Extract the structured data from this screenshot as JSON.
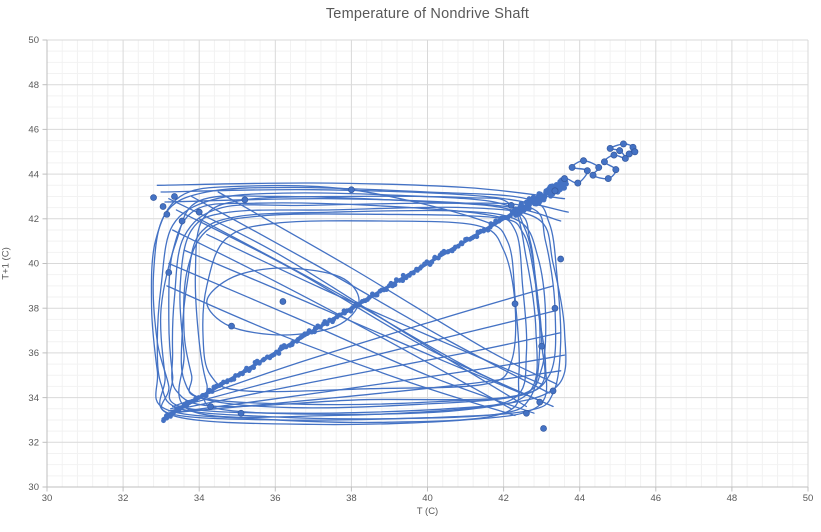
{
  "page": {
    "background": "#ffffff"
  },
  "chart_data": {
    "type": "scatter",
    "subtype": "lag-plot-smooth-lines-with-markers",
    "title": "Temperature of Nondrive Shaft",
    "xlabel": "T (C)",
    "ylabel": "T+1 (C)",
    "xlim": [
      30,
      50
    ],
    "ylim": [
      30,
      50
    ],
    "x_major": 2,
    "x_minor": 0.4,
    "y_major": 2,
    "y_minor": 0.5,
    "grid": true,
    "legend": false,
    "series_color": "#4472C4",
    "marker_edge_color": "#35599E",
    "axis_color": "#BFBFBF",
    "major_grid_color": "#D9D9D9",
    "minor_grid_color": "#F2F2F2",
    "text_color": "#595959",
    "diagonal_band": {
      "comment": "dense cloud of (T,T+1) points hugging the y=x diagonal",
      "x_start": 33.05,
      "x_end": 43.65,
      "count": 180,
      "jitter": 0.2,
      "cluster": {
        "x_min": 42.3,
        "x_max": 43.65,
        "count": 95,
        "jitter": 0.45
      }
    },
    "loops": [
      [
        [
          33.2,
          33.3
        ],
        [
          36.0,
          33.0
        ],
        [
          40.0,
          33.1
        ],
        [
          42.6,
          33.4
        ],
        [
          43.3,
          34.2
        ],
        [
          43.5,
          36.5
        ],
        [
          43.4,
          39.5
        ],
        [
          43.2,
          41.8
        ],
        [
          42.6,
          42.9
        ],
        [
          40.0,
          43.2
        ],
        [
          36.5,
          43.4
        ],
        [
          34.2,
          43.2
        ],
        [
          33.1,
          42.2
        ],
        [
          32.8,
          39.5
        ],
        [
          32.9,
          36.5
        ],
        [
          33.2,
          34.5
        ]
      ],
      [
        [
          33.3,
          33.2
        ],
        [
          37.0,
          32.8
        ],
        [
          41.0,
          33.0
        ],
        [
          42.9,
          33.6
        ],
        [
          43.1,
          35.5
        ],
        [
          42.9,
          38.0
        ],
        [
          42.7,
          41.0
        ],
        [
          42.2,
          42.4
        ],
        [
          39.5,
          42.8
        ],
        [
          36.0,
          43.0
        ],
        [
          34.0,
          42.8
        ],
        [
          33.4,
          41.0
        ],
        [
          33.0,
          38.0
        ],
        [
          33.1,
          35.0
        ]
      ],
      [
        [
          33.5,
          33.6
        ],
        [
          36.5,
          33.3
        ],
        [
          40.5,
          33.5
        ],
        [
          42.3,
          34.0
        ],
        [
          42.6,
          36.0
        ],
        [
          42.5,
          39.0
        ],
        [
          42.3,
          41.5
        ],
        [
          41.5,
          42.2
        ],
        [
          38.5,
          42.6
        ],
        [
          35.5,
          42.7
        ],
        [
          33.9,
          42.4
        ],
        [
          33.3,
          40.5
        ],
        [
          33.2,
          37.5
        ],
        [
          33.3,
          35.0
        ]
      ],
      [
        [
          33.8,
          33.4
        ],
        [
          37.5,
          33.2
        ],
        [
          41.5,
          33.6
        ],
        [
          43.4,
          34.5
        ],
        [
          43.6,
          37.0
        ],
        [
          43.3,
          40.0
        ],
        [
          42.9,
          42.0
        ],
        [
          41.0,
          42.5
        ],
        [
          37.5,
          42.4
        ],
        [
          34.8,
          42.3
        ],
        [
          33.8,
          41.5
        ],
        [
          33.5,
          39.0
        ],
        [
          33.6,
          36.0
        ]
      ],
      [
        [
          33.1,
          33.5
        ],
        [
          35.5,
          33.05
        ],
        [
          39.0,
          32.9
        ],
        [
          42.0,
          33.3
        ],
        [
          42.4,
          35.0
        ],
        [
          42.3,
          38.5
        ],
        [
          42.1,
          41.0
        ],
        [
          41.3,
          42.0
        ],
        [
          38.0,
          43.3
        ],
        [
          35.0,
          43.45
        ],
        [
          33.5,
          43.0
        ],
        [
          32.85,
          41.0
        ],
        [
          32.75,
          38.0
        ],
        [
          32.9,
          35.2
        ]
      ],
      [
        [
          34.0,
          34.0
        ],
        [
          36.8,
          33.7
        ],
        [
          40.0,
          33.8
        ],
        [
          42.8,
          34.3
        ],
        [
          43.0,
          36.5
        ],
        [
          42.8,
          39.5
        ],
        [
          42.5,
          41.4
        ],
        [
          41.8,
          42.05
        ],
        [
          38.8,
          42.2
        ],
        [
          35.8,
          42.15
        ],
        [
          34.3,
          41.6
        ],
        [
          33.7,
          39.8
        ],
        [
          33.6,
          37.0
        ],
        [
          33.8,
          35.0
        ]
      ],
      [
        [
          34.5,
          33.5
        ],
        [
          38.0,
          33.25
        ],
        [
          41.2,
          33.5
        ],
        [
          42.7,
          34.3
        ],
        [
          42.85,
          37.0
        ],
        [
          42.6,
          40.2
        ],
        [
          42.2,
          42.6
        ],
        [
          41.0,
          42.95
        ],
        [
          38.0,
          43.0
        ],
        [
          35.2,
          42.85
        ],
        [
          34.1,
          42.0
        ],
        [
          33.9,
          39.5
        ],
        [
          34.0,
          36.5
        ],
        [
          34.2,
          34.6
        ]
      ],
      [
        [
          33.4,
          34.3
        ],
        [
          34.5,
          33.6
        ],
        [
          38.2,
          33.9
        ],
        [
          42.0,
          34.0
        ],
        [
          43.2,
          35.0
        ],
        [
          43.35,
          38.0
        ],
        [
          43.1,
          41.0
        ],
        [
          42.7,
          42.5
        ],
        [
          40.5,
          42.7
        ],
        [
          36.8,
          42.6
        ],
        [
          34.6,
          42.5
        ],
        [
          33.6,
          41.2
        ],
        [
          33.35,
          38.5
        ],
        [
          33.3,
          36.0
        ]
      ],
      [
        [
          34.3,
          35.0
        ],
        [
          35.2,
          34.3
        ],
        [
          38.5,
          34.4
        ],
        [
          41.5,
          34.6
        ],
        [
          42.2,
          35.6
        ],
        [
          42.3,
          38.2
        ],
        [
          42.0,
          40.6
        ],
        [
          41.3,
          41.7
        ],
        [
          38.8,
          41.9
        ],
        [
          36.0,
          41.8
        ],
        [
          34.7,
          41.1
        ],
        [
          34.2,
          39.0
        ],
        [
          34.1,
          36.8
        ]
      ],
      [
        [
          34.2,
          38.3
        ],
        [
          34.8,
          37.2
        ],
        [
          36.2,
          36.8
        ],
        [
          37.6,
          37.2
        ],
        [
          38.2,
          38.3
        ],
        [
          37.7,
          39.4
        ],
        [
          36.2,
          39.8
        ],
        [
          34.9,
          39.4
        ]
      ],
      [
        [
          33.6,
          34.8
        ],
        [
          34.2,
          33.9
        ],
        [
          36.5,
          33.55
        ],
        [
          39.8,
          33.7
        ],
        [
          42.4,
          34.1
        ],
        [
          43.0,
          35.3
        ],
        [
          43.1,
          37.8
        ],
        [
          42.9,
          40.3
        ],
        [
          42.4,
          41.9
        ],
        [
          40.8,
          42.35
        ],
        [
          37.5,
          42.3
        ],
        [
          35.0,
          42.1
        ],
        [
          34.0,
          41.3
        ],
        [
          33.7,
          39.3
        ],
        [
          33.55,
          36.8
        ]
      ],
      [
        [
          33.0,
          34.6
        ],
        [
          33.5,
          33.5
        ],
        [
          35.8,
          33.15
        ],
        [
          38.8,
          33.05
        ],
        [
          41.8,
          33.25
        ],
        [
          42.7,
          34.0
        ],
        [
          42.95,
          36.2
        ],
        [
          42.85,
          39.2
        ],
        [
          42.55,
          41.6
        ],
        [
          41.9,
          42.7
        ],
        [
          39.2,
          43.05
        ],
        [
          36.2,
          43.15
        ],
        [
          34.35,
          42.85
        ],
        [
          33.3,
          41.7
        ],
        [
          33.0,
          39.0
        ],
        [
          32.9,
          36.4
        ]
      ]
    ],
    "chords": [
      [
        [
          33.2,
          42.9
        ],
        [
          36.0,
          40.5
        ],
        [
          39.5,
          36.8
        ],
        [
          42.6,
          33.6
        ]
      ],
      [
        [
          33.4,
          42.4
        ],
        [
          36.5,
          39.7
        ],
        [
          40.0,
          36.2
        ],
        [
          42.9,
          33.9
        ]
      ],
      [
        [
          33.8,
          43.0
        ],
        [
          37.0,
          40.0
        ],
        [
          40.5,
          36.6
        ],
        [
          43.2,
          34.2
        ]
      ],
      [
        [
          33.3,
          41.5
        ],
        [
          36.0,
          39.2
        ],
        [
          39.0,
          36.5
        ],
        [
          42.2,
          33.5
        ]
      ],
      [
        [
          34.0,
          42.0
        ],
        [
          37.5,
          38.8
        ],
        [
          41.0,
          35.4
        ],
        [
          43.3,
          33.6
        ]
      ],
      [
        [
          33.2,
          40.0
        ],
        [
          36.5,
          37.6
        ],
        [
          40.0,
          35.0
        ],
        [
          42.8,
          33.3
        ]
      ],
      [
        [
          34.5,
          43.2
        ],
        [
          38.0,
          39.8
        ],
        [
          41.5,
          36.2
        ],
        [
          43.4,
          34.6
        ]
      ],
      [
        [
          33.15,
          39.0
        ],
        [
          36.0,
          36.9
        ],
        [
          39.5,
          34.7
        ],
        [
          42.3,
          33.2
        ]
      ],
      [
        [
          34.2,
          41.3
        ],
        [
          37.2,
          38.9
        ],
        [
          40.4,
          36.5
        ],
        [
          43.0,
          34.6
        ]
      ],
      [
        [
          33.6,
          40.6
        ],
        [
          36.8,
          38.3
        ],
        [
          40.2,
          35.8
        ],
        [
          42.6,
          34.1
        ]
      ]
    ],
    "bottom_fan": [
      [
        [
          33.15,
          33.3
        ],
        [
          37.0,
          33.9
        ],
        [
          41.0,
          34.6
        ],
        [
          43.5,
          35.2
        ]
      ],
      [
        [
          33.2,
          33.3
        ],
        [
          37.5,
          34.3
        ],
        [
          41.5,
          35.3
        ],
        [
          43.6,
          35.9
        ]
      ],
      [
        [
          33.2,
          33.4
        ],
        [
          37.0,
          34.7
        ],
        [
          41.0,
          36.0
        ],
        [
          43.5,
          36.9
        ]
      ],
      [
        [
          33.25,
          33.5
        ],
        [
          37.0,
          35.2
        ],
        [
          41.0,
          36.9
        ],
        [
          43.4,
          37.9
        ]
      ],
      [
        [
          33.3,
          33.6
        ],
        [
          36.5,
          35.5
        ],
        [
          40.5,
          37.6
        ],
        [
          43.3,
          39.0
        ]
      ]
    ],
    "top_fan": [
      [
        [
          32.9,
          43.5
        ],
        [
          37.0,
          43.6
        ],
        [
          41.0,
          43.4
        ],
        [
          43.6,
          42.9
        ]
      ],
      [
        [
          33.0,
          43.2
        ],
        [
          37.0,
          43.3
        ],
        [
          41.5,
          43.0
        ],
        [
          43.7,
          42.3
        ]
      ],
      [
        [
          33.1,
          42.75
        ],
        [
          37.5,
          42.9
        ],
        [
          41.8,
          42.6
        ],
        [
          43.5,
          41.9
        ]
      ]
    ],
    "tail_points": [
      [
        43.35,
        43.25
      ],
      [
        43.6,
        43.8
      ],
      [
        43.95,
        43.6
      ],
      [
        44.2,
        44.15
      ],
      [
        43.8,
        44.3
      ],
      [
        44.1,
        44.6
      ],
      [
        44.5,
        44.3
      ],
      [
        44.35,
        43.95
      ],
      [
        44.75,
        43.8
      ],
      [
        44.95,
        44.2
      ],
      [
        44.65,
        44.55
      ],
      [
        44.9,
        44.85
      ],
      [
        45.2,
        44.7
      ],
      [
        45.05,
        45.05
      ],
      [
        44.8,
        45.15
      ],
      [
        45.15,
        45.35
      ],
      [
        45.4,
        45.2
      ],
      [
        45.3,
        44.9
      ],
      [
        45.45,
        45.0
      ]
    ],
    "extra_markers": [
      [
        32.8,
        42.95
      ],
      [
        33.05,
        42.55
      ],
      [
        33.35,
        43.0
      ],
      [
        33.15,
        42.2
      ],
      [
        34.0,
        42.3
      ],
      [
        33.55,
        41.9
      ],
      [
        43.3,
        34.3
      ],
      [
        42.95,
        33.8
      ],
      [
        43.05,
        32.62
      ],
      [
        42.6,
        33.3
      ],
      [
        43.35,
        38.0
      ],
      [
        42.3,
        38.2
      ],
      [
        36.2,
        38.3
      ],
      [
        34.85,
        37.2
      ],
      [
        35.2,
        42.85
      ],
      [
        38.0,
        43.3
      ],
      [
        34.3,
        33.6
      ],
      [
        35.1,
        33.3
      ],
      [
        42.2,
        42.6
      ],
      [
        43.5,
        40.2
      ],
      [
        33.2,
        39.6
      ],
      [
        43.0,
        36.3
      ]
    ]
  }
}
